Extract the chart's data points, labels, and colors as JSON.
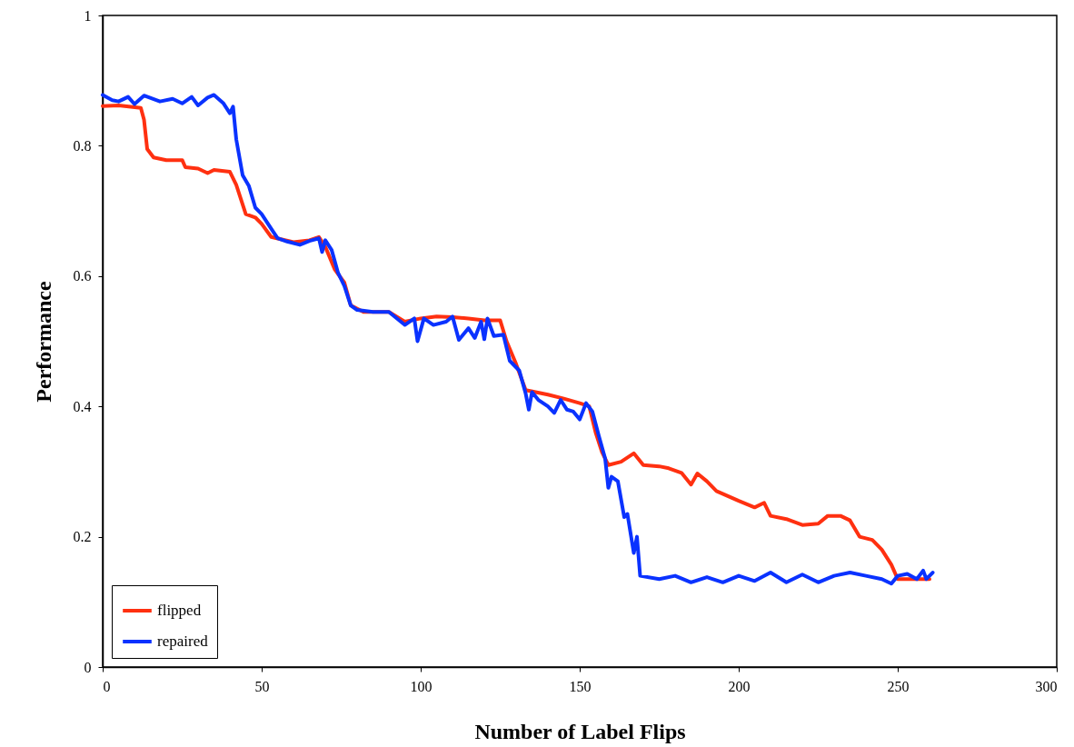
{
  "chart_data": {
    "type": "line",
    "xlabel": "Number of Label Flips",
    "ylabel": "Performance",
    "xlim": [
      0,
      300
    ],
    "xticks": [
      0,
      50,
      100,
      150,
      200,
      250,
      300
    ],
    "ylim": [
      0,
      1
    ],
    "yticks": [
      0,
      0.2,
      0.4,
      0.6,
      0.8,
      1
    ],
    "grid": false,
    "legend": "bottom left",
    "line_style": "solid",
    "marker": "none",
    "series": [
      {
        "name": "flipped",
        "color": "#ff3010",
        "x": [
          0,
          5,
          12,
          13,
          14,
          16,
          20,
          25,
          26,
          30,
          33,
          35,
          40,
          42,
          45,
          48,
          50,
          53,
          60,
          65,
          68,
          70,
          73,
          76,
          78,
          82,
          90,
          95,
          100,
          105,
          110,
          115,
          120,
          125,
          127,
          130,
          133,
          140,
          145,
          150,
          153,
          155,
          157,
          159,
          163,
          167,
          170,
          175,
          178,
          182,
          185,
          187,
          190,
          193,
          200,
          205,
          208,
          210,
          215,
          220,
          225,
          228,
          232,
          235,
          238,
          242,
          245,
          248,
          250,
          255,
          260
        ],
        "values": [
          0.861,
          0.862,
          0.858,
          0.84,
          0.795,
          0.782,
          0.778,
          0.778,
          0.767,
          0.765,
          0.758,
          0.763,
          0.76,
          0.74,
          0.695,
          0.69,
          0.68,
          0.66,
          0.652,
          0.655,
          0.66,
          0.645,
          0.61,
          0.59,
          0.555,
          0.545,
          0.545,
          0.53,
          0.535,
          0.538,
          0.537,
          0.535,
          0.532,
          0.532,
          0.5,
          0.465,
          0.425,
          0.418,
          0.412,
          0.405,
          0.4,
          0.36,
          0.33,
          0.31,
          0.315,
          0.328,
          0.31,
          0.308,
          0.305,
          0.298,
          0.28,
          0.297,
          0.285,
          0.27,
          0.255,
          0.245,
          0.252,
          0.232,
          0.227,
          0.218,
          0.22,
          0.232,
          0.232,
          0.225,
          0.2,
          0.195,
          0.18,
          0.157,
          0.135,
          0.135,
          0.135
        ]
      },
      {
        "name": "repaired",
        "color": "#0a32ff",
        "x": [
          0,
          3,
          5,
          8,
          10,
          13,
          18,
          22,
          25,
          28,
          30,
          33,
          35,
          38,
          40,
          41,
          42,
          44,
          46,
          48,
          50,
          52,
          55,
          58,
          62,
          65,
          68,
          69,
          70,
          72,
          74,
          76,
          78,
          80,
          85,
          90,
          95,
          98,
          99,
          101,
          104,
          108,
          110,
          112,
          115,
          117,
          119,
          120,
          121,
          123,
          126,
          128,
          131,
          133,
          134,
          135,
          137,
          140,
          142,
          144,
          146,
          148,
          150,
          152,
          154,
          156,
          158,
          159,
          160,
          162,
          164,
          165,
          167,
          168,
          169,
          175,
          180,
          185,
          190,
          195,
          200,
          205,
          210,
          215,
          220,
          225,
          230,
          235,
          240,
          245,
          248,
          250,
          253,
          256,
          258,
          259,
          261
        ],
        "values": [
          0.878,
          0.87,
          0.868,
          0.875,
          0.864,
          0.877,
          0.868,
          0.872,
          0.865,
          0.875,
          0.862,
          0.874,
          0.878,
          0.865,
          0.85,
          0.86,
          0.81,
          0.755,
          0.738,
          0.705,
          0.695,
          0.68,
          0.658,
          0.653,
          0.648,
          0.654,
          0.658,
          0.637,
          0.655,
          0.64,
          0.605,
          0.585,
          0.555,
          0.548,
          0.545,
          0.545,
          0.525,
          0.535,
          0.5,
          0.535,
          0.525,
          0.53,
          0.538,
          0.502,
          0.52,
          0.505,
          0.53,
          0.503,
          0.535,
          0.508,
          0.51,
          0.47,
          0.455,
          0.42,
          0.395,
          0.422,
          0.41,
          0.4,
          0.39,
          0.41,
          0.395,
          0.392,
          0.38,
          0.405,
          0.392,
          0.355,
          0.32,
          0.275,
          0.292,
          0.285,
          0.23,
          0.235,
          0.175,
          0.2,
          0.14,
          0.135,
          0.14,
          0.13,
          0.138,
          0.13,
          0.14,
          0.132,
          0.145,
          0.13,
          0.142,
          0.13,
          0.14,
          0.145,
          0.14,
          0.135,
          0.128,
          0.14,
          0.143,
          0.135,
          0.148,
          0.135,
          0.145
        ]
      }
    ]
  }
}
